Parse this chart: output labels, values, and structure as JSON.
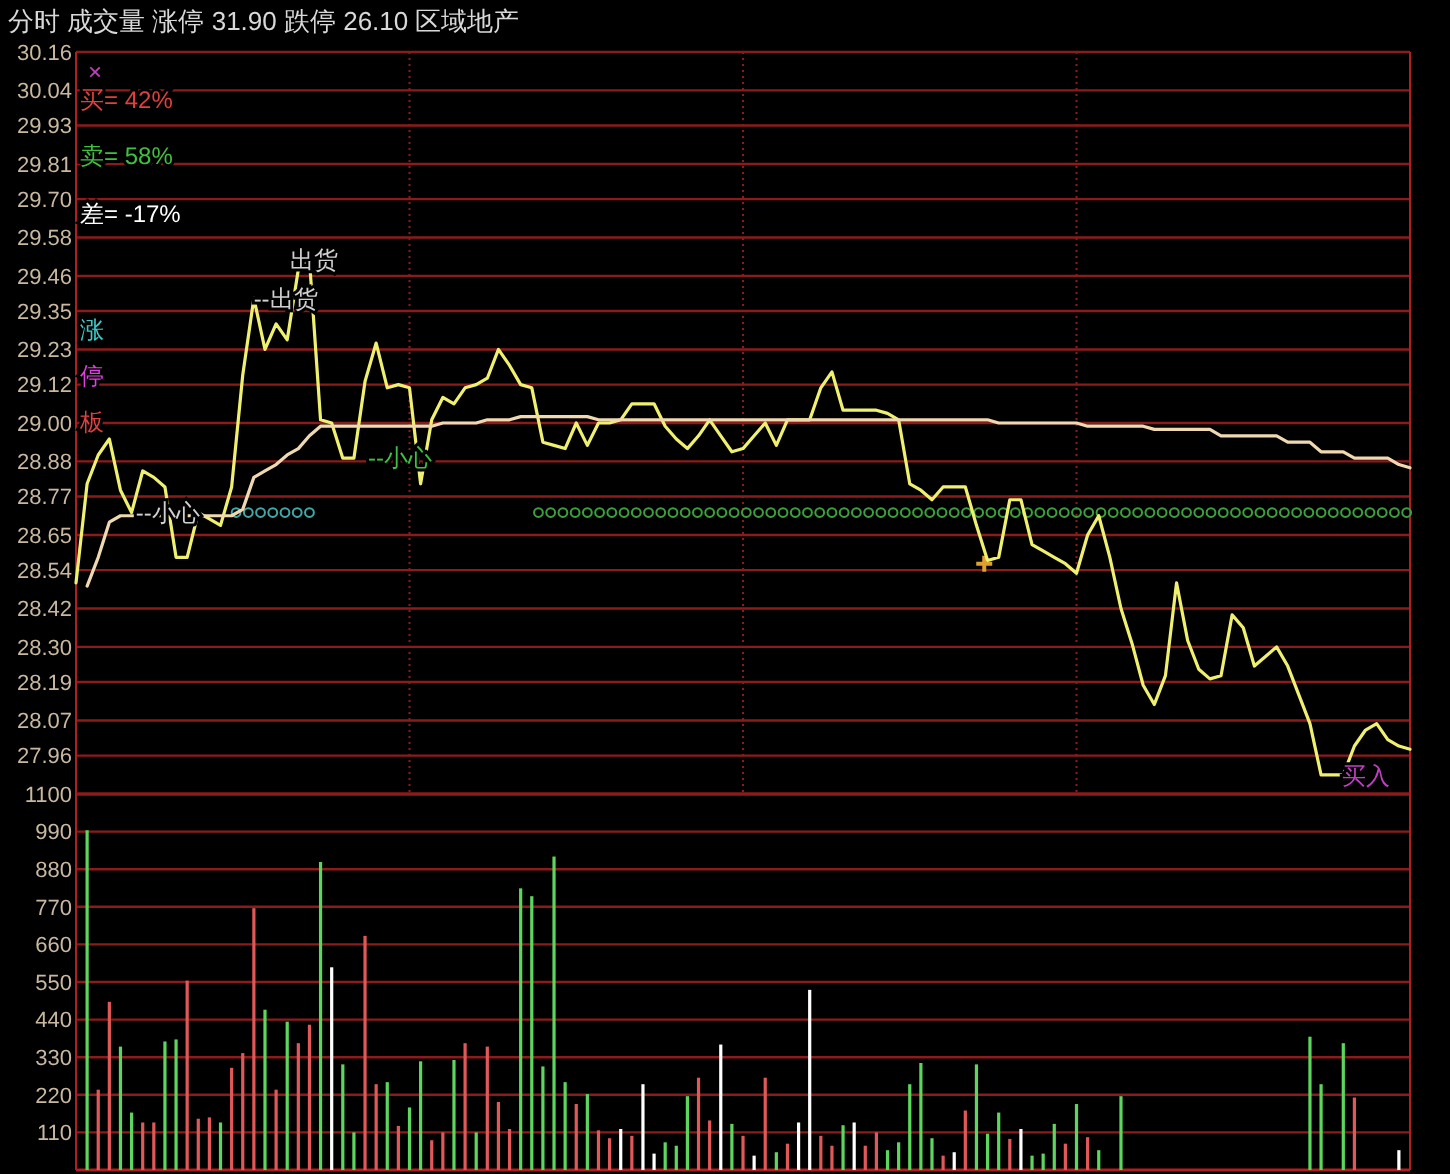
{
  "chart_data": [
    {
      "type": "line",
      "title": "分时 成交量 涨停 31.90 跌停 26.10 区域地产",
      "categories": [
        null,
        null,
        null,
        null,
        null,
        null,
        null,
        null,
        null,
        null,
        null,
        null,
        null,
        null,
        null,
        null,
        null,
        null,
        null,
        null,
        null,
        null,
        null,
        null,
        null,
        null,
        null,
        null,
        null,
        null,
        null,
        null,
        null,
        null,
        null,
        null,
        null,
        null,
        null,
        null,
        null,
        null,
        null,
        null,
        null,
        null,
        null,
        null,
        null,
        null,
        null,
        null,
        null,
        null,
        null,
        null,
        null,
        null,
        null,
        null,
        null,
        null,
        null,
        null,
        null,
        null,
        null,
        null,
        null,
        null,
        null,
        null,
        null,
        null,
        null,
        null,
        null,
        null,
        null,
        null,
        null,
        null,
        null,
        null,
        null,
        null,
        null,
        null,
        null,
        null,
        null,
        null,
        null,
        null,
        null,
        null,
        null,
        null,
        null,
        null,
        null,
        null,
        null,
        null,
        null,
        null,
        null,
        null,
        null,
        null,
        null,
        null,
        null,
        null,
        null,
        null,
        null,
        null,
        null,
        null,
        null
      ],
      "ylim": [
        27.84,
        30.16
      ],
      "yticks": [
        {
          "value": 27.96,
          "label": "27.96"
        },
        {
          "value": 28.07,
          "label": "28.07"
        },
        {
          "value": 28.19,
          "label": "28.19"
        },
        {
          "value": 28.3,
          "label": "28.30"
        },
        {
          "value": 28.42,
          "label": "28.42"
        },
        {
          "value": 28.54,
          "label": "28.54"
        },
        {
          "value": 28.65,
          "label": "28.65"
        },
        {
          "value": 28.77,
          "label": "28.77"
        },
        {
          "value": 28.88,
          "label": "28.88"
        },
        {
          "value": 29.0,
          "label": "29.00"
        },
        {
          "value": 29.12,
          "label": "29.12"
        },
        {
          "value": 29.23,
          "label": "29.23"
        },
        {
          "value": 29.35,
          "label": "29.35"
        },
        {
          "value": 29.46,
          "label": "29.46"
        },
        {
          "value": 29.58,
          "label": "29.58"
        },
        {
          "value": 29.7,
          "label": "29.70"
        },
        {
          "value": 29.81,
          "label": "29.81"
        },
        {
          "value": 29.93,
          "label": "29.93"
        },
        {
          "value": 30.04,
          "label": "30.04"
        },
        {
          "value": 30.16,
          "label": "30.16"
        }
      ],
      "grid": true,
      "marker": "none",
      "series": [
        {
          "color": "#f0f070",
          "values": [
            28.5,
            28.81,
            28.9,
            28.95,
            28.79,
            28.72,
            28.85,
            28.83,
            28.8,
            28.58,
            28.58,
            28.72,
            28.7,
            28.68,
            28.8,
            29.15,
            29.39,
            29.23,
            29.31,
            29.26,
            29.48,
            29.51,
            29.01,
            29.0,
            28.89,
            28.89,
            29.13,
            29.25,
            29.11,
            29.12,
            29.11,
            28.81,
            29.01,
            29.08,
            29.06,
            29.11,
            29.12,
            29.14,
            29.23,
            29.18,
            29.12,
            29.11,
            28.94,
            28.93,
            28.92,
            29.0,
            28.93,
            29.0,
            29.0,
            29.01,
            29.06,
            29.06,
            29.06,
            28.99,
            28.95,
            28.92,
            28.96,
            29.01,
            28.96,
            28.91,
            28.92,
            28.96,
            29.0,
            28.93,
            29.01,
            29.01,
            29.01,
            29.11,
            29.16,
            29.04,
            29.04,
            29.04,
            29.04,
            29.03,
            29.01,
            28.81,
            28.79,
            28.76,
            28.8,
            28.8,
            28.8,
            28.68,
            28.57,
            28.58,
            28.76,
            28.76,
            28.62,
            28.6,
            28.58,
            28.56,
            28.53,
            28.65,
            28.71,
            28.58,
            28.42,
            28.31,
            28.18,
            28.12,
            28.21,
            28.5,
            28.32,
            28.23,
            28.2,
            28.21,
            28.4,
            28.36,
            28.24,
            28.27,
            28.3,
            28.24,
            28.15,
            28.06,
            27.9,
            27.9,
            27.9,
            27.99,
            28.04,
            28.06,
            28.01,
            27.99,
            27.98
          ]
        },
        {
          "color": "#f0d8b0",
          "values": [
            null,
            28.49,
            28.58,
            28.69,
            28.71,
            28.71,
            28.71,
            28.71,
            28.71,
            28.71,
            28.71,
            28.71,
            28.71,
            28.71,
            28.71,
            28.73,
            28.83,
            28.85,
            28.87,
            28.9,
            28.92,
            28.96,
            28.99,
            28.99,
            28.99,
            28.99,
            28.99,
            28.99,
            28.99,
            28.99,
            28.99,
            28.99,
            28.99,
            29.0,
            29.0,
            29.0,
            29.0,
            29.01,
            29.01,
            29.01,
            29.02,
            29.02,
            29.02,
            29.02,
            29.02,
            29.02,
            29.02,
            29.01,
            29.01,
            29.01,
            29.01,
            29.01,
            29.01,
            29.01,
            29.01,
            29.01,
            29.01,
            29.01,
            29.01,
            29.01,
            29.01,
            29.01,
            29.01,
            29.01,
            29.01,
            29.01,
            29.01,
            29.01,
            29.01,
            29.01,
            29.01,
            29.01,
            29.01,
            29.01,
            29.01,
            29.01,
            29.01,
            29.01,
            29.01,
            29.01,
            29.01,
            29.01,
            29.01,
            29.0,
            29.0,
            29.0,
            29.0,
            29.0,
            29.0,
            29.0,
            29.0,
            28.99,
            28.99,
            28.99,
            28.99,
            28.99,
            28.99,
            28.98,
            28.98,
            28.98,
            28.98,
            28.98,
            28.98,
            28.96,
            28.96,
            28.96,
            28.96,
            28.96,
            28.96,
            28.94,
            28.94,
            28.94,
            28.91,
            28.91,
            28.91,
            28.89,
            28.89,
            28.89,
            28.89,
            28.87,
            28.86
          ]
        }
      ],
      "annotations": [
        "×",
        "买= 42%",
        "卖= 58%",
        "差= -17%",
        "涨",
        "停",
        "板",
        {
          "text": "--小心",
          "y": 28.72
        },
        {
          "text": "--出货",
          "y": 29.39
        },
        "出货",
        "--小心",
        "买入"
      ]
    },
    {
      "type": "bar",
      "categories": [
        null,
        null,
        null,
        null,
        null,
        null,
        null,
        null,
        null,
        null,
        null,
        null,
        null,
        null,
        null,
        null,
        null,
        null,
        null,
        null,
        null,
        null,
        null,
        null,
        null,
        null,
        null,
        null,
        null,
        null,
        null,
        null,
        null,
        null,
        null,
        null,
        null,
        null,
        null,
        null,
        null,
        null,
        null,
        null,
        null,
        null,
        null,
        null,
        null,
        null,
        null,
        null,
        null,
        null,
        null,
        null,
        null,
        null,
        null,
        null,
        null,
        null,
        null,
        null,
        null,
        null,
        null,
        null,
        null,
        null,
        null,
        null,
        null,
        null,
        null,
        null,
        null,
        null,
        null,
        null,
        null,
        null,
        null,
        null,
        null,
        null,
        null,
        null,
        null,
        null,
        null,
        null,
        null,
        null,
        null,
        null,
        null,
        null,
        null,
        null,
        null,
        null,
        null,
        null,
        null,
        null,
        null,
        null,
        null,
        null,
        null,
        null,
        null,
        null,
        null,
        null,
        null,
        null,
        null,
        null,
        null
      ],
      "ylim": [
        0,
        1100
      ],
      "yticks": [
        110,
        220,
        330,
        440,
        550,
        660,
        770,
        880,
        990,
        1100
      ],
      "grid": "y",
      "values": [
        null,
        994,
        235,
        492,
        361,
        168,
        139,
        139,
        376,
        382,
        554,
        150,
        154,
        139,
        299,
        342,
        766,
        469,
        235,
        434,
        371,
        425,
        901,
        593,
        309,
        110,
        685,
        251,
        257,
        129,
        183,
        318,
        87,
        110,
        322,
        371,
        110,
        361,
        199,
        120,
        824,
        801,
        303,
        917,
        257,
        193,
        222,
        116,
        93,
        120,
        100,
        251,
        48,
        81,
        71,
        216,
        270,
        145,
        367,
        135,
        100,
        42,
        270,
        52,
        77,
        139,
        527,
        100,
        71,
        131,
        139,
        71,
        110,
        58,
        81,
        251,
        313,
        93,
        42,
        52,
        174,
        309,
        106,
        168,
        91,
        120,
        42,
        48,
        135,
        77,
        193,
        96,
        58,
        null,
        216,
        null,
        null,
        null,
        null,
        null,
        null,
        null,
        null,
        null,
        null,
        null,
        null,
        null,
        null,
        null,
        null,
        390,
        251,
        null,
        371,
        212,
        null,
        null,
        null,
        58,
        null
      ],
      "colors": [
        null,
        "#5cd65c",
        "#e05858",
        "#e05858",
        "#5cd65c",
        "#5cd65c",
        "#e05858",
        "#e05858",
        "#5cd65c",
        "#5cd65c",
        "#e05858",
        "#e05858",
        "#e05858",
        "#5cd65c",
        "#e05858",
        "#e05858",
        "#e05858",
        "#5cd65c",
        "#e05858",
        "#5cd65c",
        "#e05858",
        "#e05858",
        "#5cd65c",
        "#ffffff",
        "#5cd65c",
        "#5cd65c",
        "#e05858",
        "#e05858",
        "#5cd65c",
        "#e05858",
        "#5cd65c",
        "#5cd65c",
        "#e05858",
        "#e05858",
        "#5cd65c",
        "#e05858",
        "#5cd65c",
        "#e05858",
        "#e05858",
        "#e05858",
        "#5cd65c",
        "#5cd65c",
        "#5cd65c",
        "#5cd65c",
        "#5cd65c",
        "#e05858",
        "#5cd65c",
        "#e05858",
        "#e05858",
        "#ffffff",
        "#e05858",
        "#ffffff",
        "#ffffff",
        "#5cd65c",
        "#5cd65c",
        "#5cd65c",
        "#e05858",
        "#e05858",
        "#ffffff",
        "#5cd65c",
        "#e05858",
        "#ffffff",
        "#e05858",
        "#5cd65c",
        "#e05858",
        "#ffffff",
        "#ffffff",
        "#e05858",
        "#e05858",
        "#5cd65c",
        "#ffffff",
        "#e05858",
        "#e05858",
        "#5cd65c",
        "#5cd65c",
        "#5cd65c",
        "#5cd65c",
        "#5cd65c",
        "#e05858",
        "#ffffff",
        "#e05858",
        "#5cd65c",
        "#5cd65c",
        "#5cd65c",
        "#e05858",
        "#ffffff",
        "#5cd65c",
        "#5cd65c",
        "#5cd65c",
        "#e05858",
        "#5cd65c",
        "#e05858",
        "#5cd65c",
        null,
        "#5cd65c",
        null,
        null,
        null,
        null,
        null,
        null,
        null,
        null,
        null,
        null,
        null,
        null,
        null,
        null,
        null,
        null,
        "#5cd65c",
        "#5cd65c",
        null,
        "#5cd65c",
        "#e05858",
        null,
        null,
        null,
        "#ffffff",
        null
      ]
    }
  ]
}
